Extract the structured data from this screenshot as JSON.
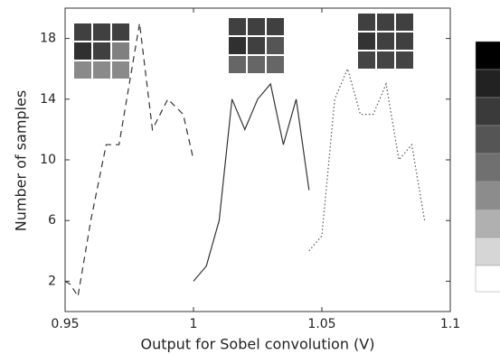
{
  "chart_data": {
    "type": "line",
    "x_label": "Output for Sobel convolution (V)",
    "y_label": "Number of samples",
    "xlim": [
      0.95,
      1.1
    ],
    "xticks": [
      0.95,
      1,
      1.05,
      1.1
    ],
    "ylim": [
      0,
      20
    ],
    "yticks": [
      2,
      6,
      10,
      14,
      18
    ],
    "series": [
      {
        "color": "#333333",
        "dash": "dashed",
        "x": [
          0.95,
          0.952,
          0.955,
          0.96,
          0.966,
          0.971,
          0.979,
          0.984,
          0.99,
          0.996,
          1.0
        ],
        "values": [
          2,
          1.8,
          1,
          6,
          11,
          11,
          19,
          12,
          14,
          13,
          10
        ]
      },
      {
        "color": "#333333",
        "dash": "solid",
        "x": [
          1.0,
          1.005,
          1.01,
          1.015,
          1.02,
          1.025,
          1.03,
          1.035,
          1.04,
          1.045
        ],
        "values": [
          2,
          3,
          6,
          14,
          12,
          14,
          15,
          11,
          14,
          8
        ]
      },
      {
        "color": "#555555",
        "dash": "dotted",
        "x": [
          1.045,
          1.05,
          1.055,
          1.06,
          1.065,
          1.07,
          1.075,
          1.08,
          1.085,
          1.09
        ],
        "values": [
          4,
          5,
          14,
          16,
          13,
          13,
          15,
          10,
          11,
          6
        ]
      }
    ]
  }
}
